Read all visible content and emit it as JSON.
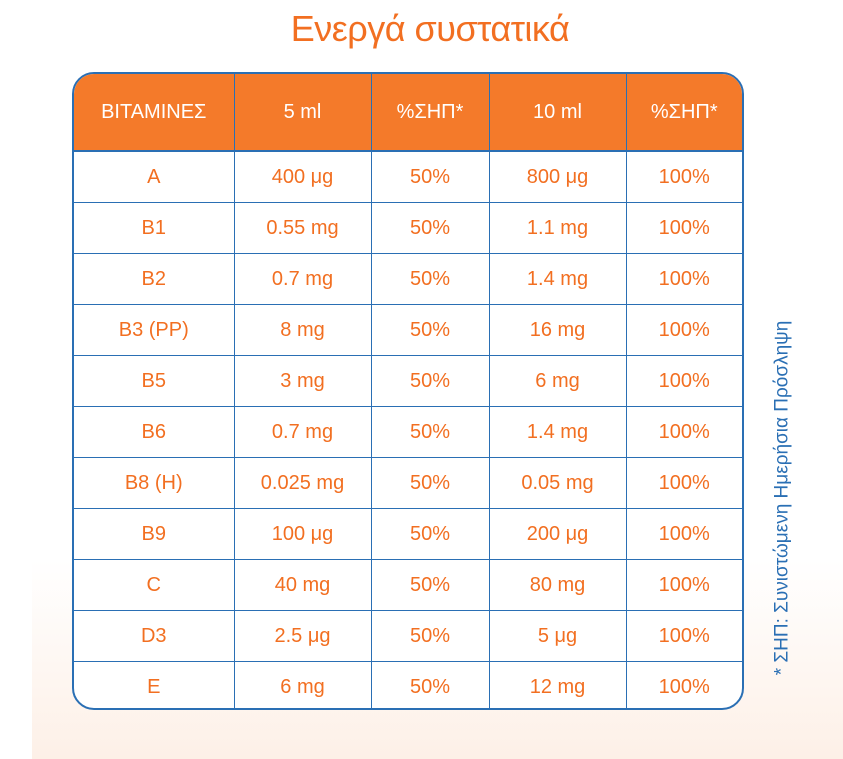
{
  "title": "Ενεργά συστατικά",
  "table": {
    "headers": [
      "ΒΙΤΑΜΙΝΕΣ",
      "5 ml",
      "%ΣΗΠ*",
      "10 ml",
      "%ΣΗΠ*"
    ],
    "rows": [
      [
        "A",
        "400 μg",
        "50%",
        "800 μg",
        "100%"
      ],
      [
        "B1",
        "0.55 mg",
        "50%",
        "1.1 mg",
        "100%"
      ],
      [
        "B2",
        "0.7 mg",
        "50%",
        "1.4 mg",
        "100%"
      ],
      [
        "B3 (PP)",
        "8 mg",
        "50%",
        "16 mg",
        "100%"
      ],
      [
        "B5",
        "3 mg",
        "50%",
        "6 mg",
        "100%"
      ],
      [
        "B6",
        "0.7 mg",
        "50%",
        "1.4 mg",
        "100%"
      ],
      [
        "B8 (H)",
        "0.025 mg",
        "50%",
        "0.05 mg",
        "100%"
      ],
      [
        "B9",
        "100 μg",
        "50%",
        "200 μg",
        "100%"
      ],
      [
        "C",
        "40 mg",
        "50%",
        "80 mg",
        "100%"
      ],
      [
        "D3",
        "2.5 μg",
        "50%",
        "5 μg",
        "100%"
      ],
      [
        "E",
        "6 mg",
        "50%",
        "12 mg",
        "100%"
      ]
    ]
  },
  "footnote": "* ΣΗΠ: Συνιστώμενη Ημερήσια Πρόσληψη",
  "colors": {
    "accent": "#f26f21",
    "header_bg": "#f47a2a",
    "border": "#2a6fb4",
    "footnote": "#2a6fb4"
  }
}
